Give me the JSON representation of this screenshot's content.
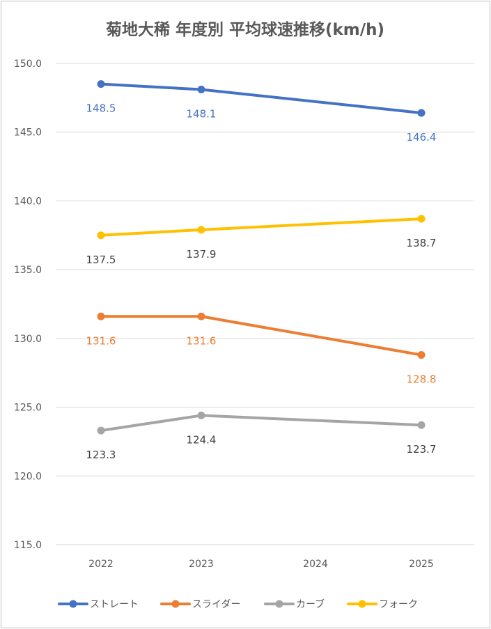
{
  "chart_data": {
    "type": "line",
    "title": "菊地大稀 年度別 平均球速推移(km/h)",
    "categories": [
      "2022",
      "2023",
      "2024",
      "2025"
    ],
    "ylim": [
      115.0,
      150.0
    ],
    "yticks": [
      "150.0",
      "145.0",
      "140.0",
      "135.0",
      "130.0",
      "125.0",
      "120.0",
      "115.0"
    ],
    "grid": true,
    "legend_position": "bottom",
    "series": [
      {
        "name": "ストレート",
        "color": "#4472C4",
        "values": [
          148.5,
          148.1,
          null,
          146.4
        ],
        "labels": [
          "148.5",
          "148.1",
          null,
          "146.4"
        ],
        "label_color": "#4472C4"
      },
      {
        "name": "スライダー",
        "color": "#ED7D31",
        "values": [
          131.6,
          131.6,
          null,
          128.8
        ],
        "labels": [
          "131.6",
          "131.6",
          null,
          "128.8"
        ],
        "label_color": "#ED7D31"
      },
      {
        "name": "カーブ",
        "color": "#A5A5A5",
        "values": [
          123.3,
          124.4,
          null,
          123.7
        ],
        "labels": [
          "123.3",
          "124.4",
          null,
          "123.7"
        ],
        "label_color": "#404040"
      },
      {
        "name": "フォーク",
        "color": "#FFC000",
        "values": [
          137.5,
          137.9,
          null,
          138.7
        ],
        "labels": [
          "137.5",
          "137.9",
          null,
          "138.7"
        ],
        "label_color": "#404040"
      }
    ]
  }
}
